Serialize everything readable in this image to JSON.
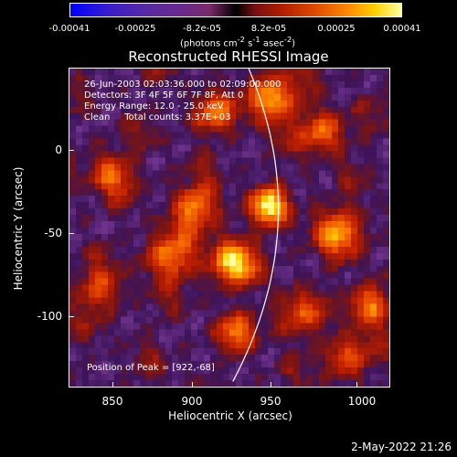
{
  "colorbar": {
    "ticks": [
      "-0.00041",
      "-0.00025",
      "-8.2e-05",
      "8.2e-05",
      "0.00025",
      "0.00041"
    ],
    "units_prefix": "(photons cm",
    "units_sup1": "-2",
    "units_mid1": " s",
    "units_sup2": "-1",
    "units_mid2": " asec",
    "units_sup3": "-2",
    "units_suffix": ")"
  },
  "title": "Reconstructed RHESSI Image",
  "info": {
    "line1": "26-Jun-2003 02:03:36.000 to 02:09:00.000",
    "line2": "Detectors: 3F 4F 5F 6F 7F 8F, Att 0",
    "line3": "Energy Range: 12.0 - 25.0 keV",
    "line4": "Clean     Total counts: 3.37E+03",
    "peak": "Position of Peak = [922,-68]"
  },
  "x_ticks": [
    "850",
    "900",
    "950",
    "1000"
  ],
  "y_ticks": [
    "0",
    "-50",
    "-100"
  ],
  "xlabel": "Heliocentric X (arcsec)",
  "ylabel": "Heliocentric Y (arcsec)",
  "timestamp": "2-May-2022 21:26",
  "chart_data": {
    "type": "heatmap",
    "title": "Reconstructed RHESSI Image",
    "xlabel": "Heliocentric X (arcsec)",
    "ylabel": "Heliocentric Y (arcsec)",
    "xlim": [
      825,
      1015
    ],
    "ylim": [
      -143,
      48
    ],
    "colorbar_range": [
      -0.00041,
      0.00041
    ],
    "peak": [
      922,
      -68
    ],
    "sources": [
      {
        "x": 922,
        "y": -68,
        "amp": 1.0,
        "r": 9
      },
      {
        "x": 944,
        "y": -35,
        "amp": 0.9,
        "r": 8
      },
      {
        "x": 945,
        "y": 30,
        "amp": 0.85,
        "r": 10
      },
      {
        "x": 900,
        "y": -35,
        "amp": 0.75,
        "r": 9
      },
      {
        "x": 885,
        "y": -65,
        "amp": 0.7,
        "r": 10
      },
      {
        "x": 910,
        "y": 20,
        "amp": 0.6,
        "r": 8
      },
      {
        "x": 1003,
        "y": -95,
        "amp": 0.75,
        "r": 8
      },
      {
        "x": 985,
        "y": -50,
        "amp": 0.7,
        "r": 10
      },
      {
        "x": 975,
        "y": 10,
        "amp": 0.65,
        "r": 9
      },
      {
        "x": 850,
        "y": -15,
        "amp": 0.6,
        "r": 9
      },
      {
        "x": 925,
        "y": -110,
        "amp": 0.55,
        "r": 8
      },
      {
        "x": 990,
        "y": -125,
        "amp": 0.55,
        "r": 9
      },
      {
        "x": 842,
        "y": -85,
        "amp": 0.5,
        "r": 9
      },
      {
        "x": 960,
        "y": -100,
        "amp": 0.5,
        "r": 9
      }
    ]
  }
}
